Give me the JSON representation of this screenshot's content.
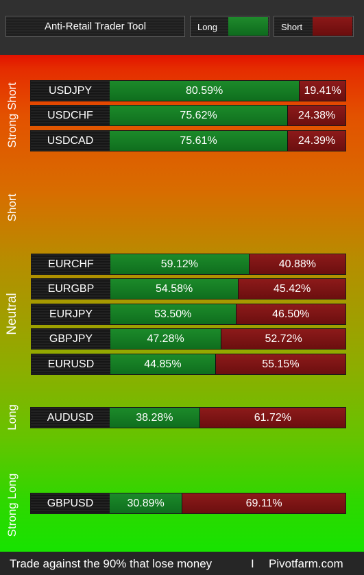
{
  "header": {
    "title": "Anti-Retail Trader Tool",
    "legend_long": "Long",
    "legend_short": "Short",
    "colors": {
      "long": "#14802a",
      "short": "#7d1414"
    }
  },
  "zones": {
    "strong_short": "Strong Short",
    "short": "Short",
    "neutral": "Neutral",
    "long": "Long",
    "strong_long": "Strong Long"
  },
  "rows": [
    {
      "pair": "USDJPY",
      "long_pct": 80.59,
      "long": "80.59%",
      "short": "19.41%"
    },
    {
      "pair": "USDCHF",
      "long_pct": 75.62,
      "long": "75.62%",
      "short": "24.38%"
    },
    {
      "pair": "USDCAD",
      "long_pct": 75.61,
      "long": "75.61%",
      "short": "24.39%"
    },
    {
      "pair": "EURCHF",
      "long_pct": 59.12,
      "long": "59.12%",
      "short": "40.88%"
    },
    {
      "pair": "EURGBP",
      "long_pct": 54.58,
      "long": "54.58%",
      "short": "45.42%"
    },
    {
      "pair": "EURJPY",
      "long_pct": 53.5,
      "long": "53.50%",
      "short": "46.50%"
    },
    {
      "pair": "GBPJPY",
      "long_pct": 47.28,
      "long": "47.28%",
      "short": "52.72%"
    },
    {
      "pair": "EURUSD",
      "long_pct": 44.85,
      "long": "44.85%",
      "short": "55.15%"
    },
    {
      "pair": "AUDUSD",
      "long_pct": 38.28,
      "long": "38.28%",
      "short": "61.72%"
    },
    {
      "pair": "GBPUSD",
      "long_pct": 30.89,
      "long": "30.89%",
      "short": "69.11%"
    }
  ],
  "footer": {
    "tagline": "Trade against the 90% that lose money",
    "separator": "I",
    "site": "Pivotfarm.com"
  }
}
